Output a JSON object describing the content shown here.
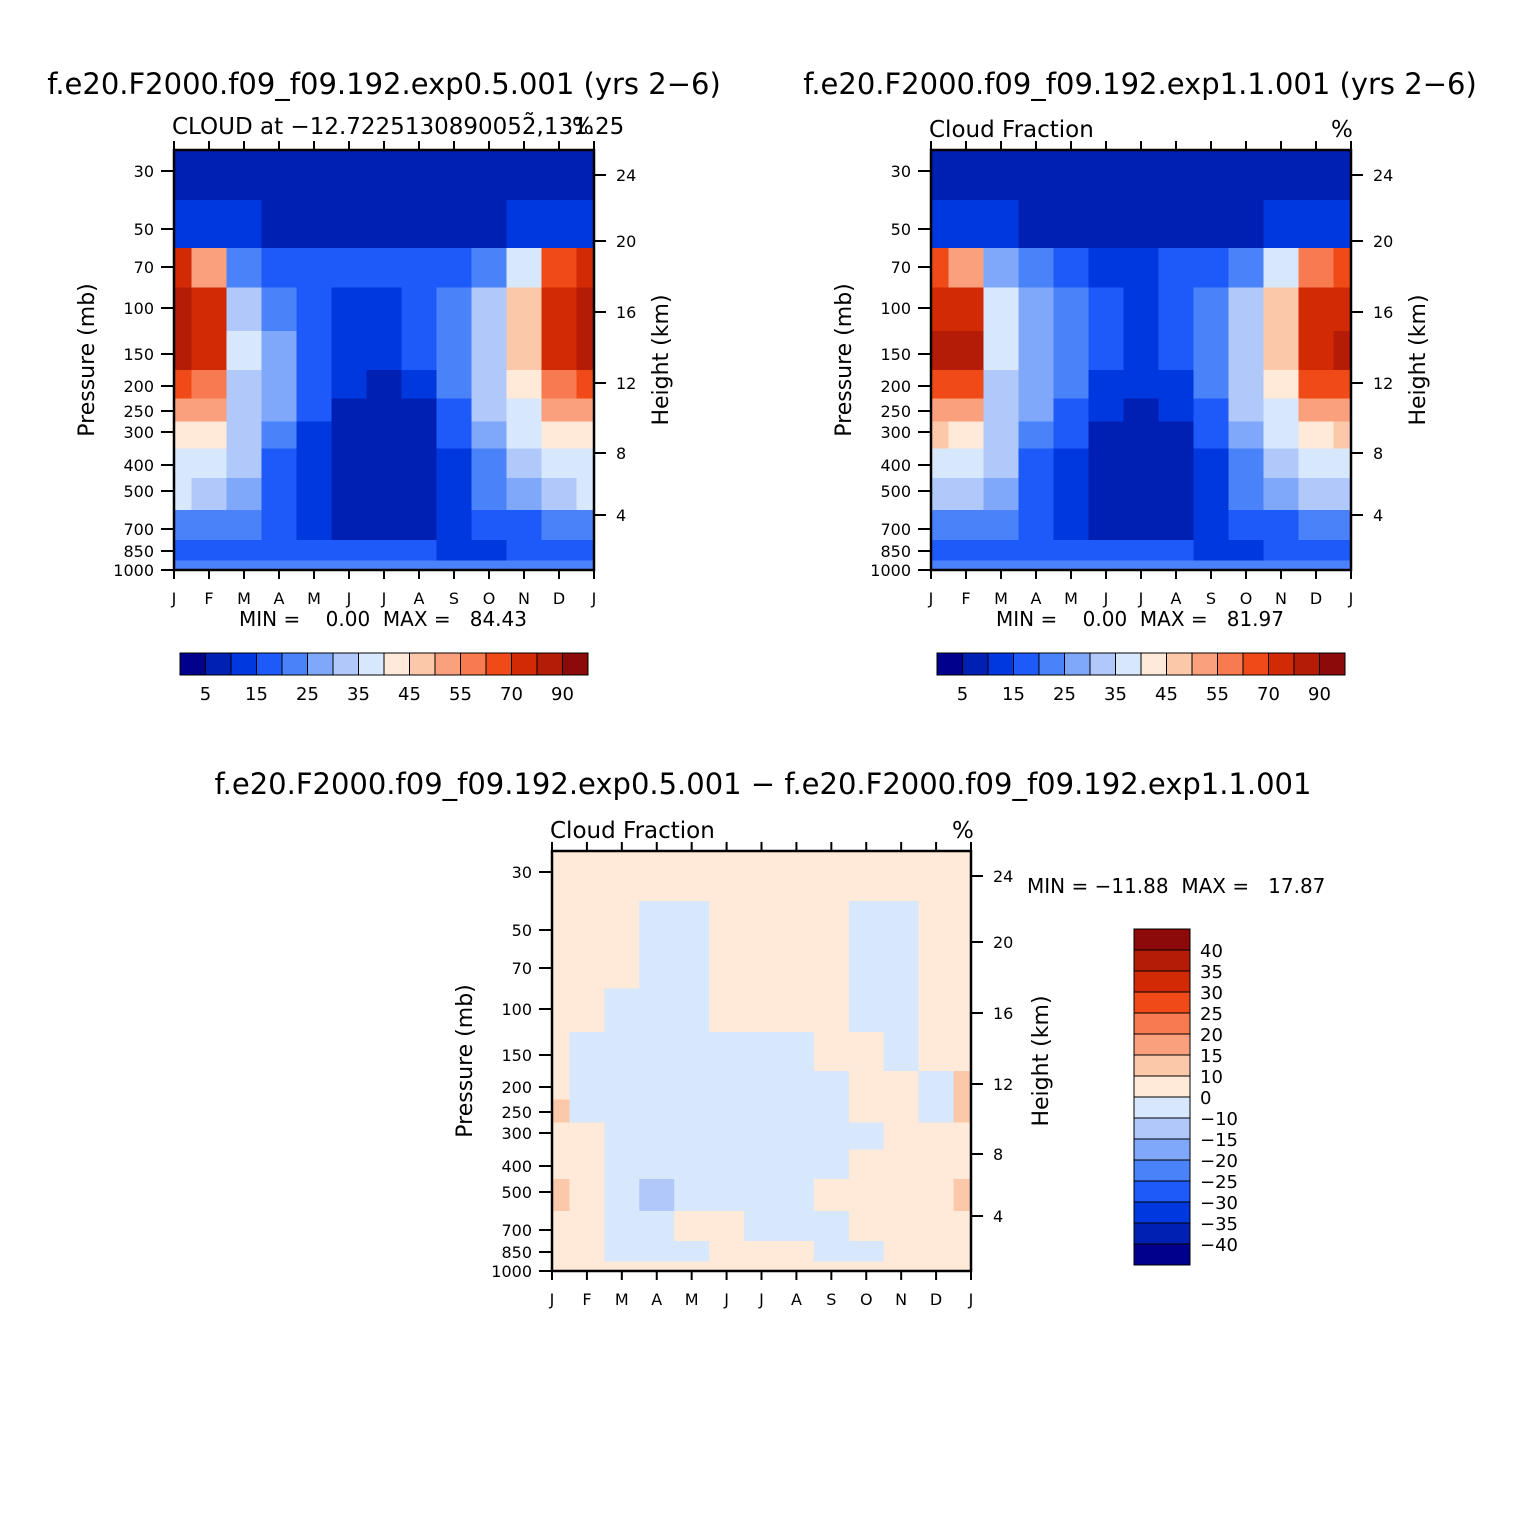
{
  "chart_data": [
    {
      "type": "heatmap",
      "title": "f.e20.F2000.f09_f09.192.exp0.5.001 (yrs 2−6)",
      "subtitle": "CLOUD at −12.7225130890052̃,131.25",
      "units": "%",
      "ylabel": "Pressure (mb)",
      "ylabel_right": "Height (km)",
      "x_ticks": [
        "J",
        "F",
        "M",
        "A",
        "M",
        "J",
        "J",
        "A",
        "S",
        "O",
        "N",
        "D",
        "J"
      ],
      "y_ticks": [
        "30",
        "50",
        "70",
        "100",
        "150",
        "200",
        "250",
        "300",
        "400",
        "500",
        "700",
        "850",
        "1000"
      ],
      "height_ticks": [
        "24",
        "20",
        "16",
        "12",
        "8",
        "4"
      ],
      "min_max": "MIN =    0.00  MAX =   84.43",
      "colorbar_labels": [
        "5",
        "15",
        "25",
        "35",
        "45",
        "55",
        "70",
        "90"
      ],
      "colorbar_colors": [
        "#00008C",
        "#0020B4",
        "#0038E0",
        "#1E5AFA",
        "#4A82FA",
        "#7FA8FA",
        "#B0C8FA",
        "#D8E8FC",
        "#FFE9D8",
        "#FCC8AA",
        "#FAA07C",
        "#F87A50",
        "#F04A18",
        "#D22A04",
        "#B41C08",
        "#8C0A0A"
      ],
      "ylim": [
        1000,
        30
      ],
      "z": [
        [
          1,
          1,
          1,
          1,
          1,
          1,
          1,
          1,
          1,
          1,
          1,
          1,
          1
        ],
        [
          2,
          2,
          2,
          1,
          1,
          1,
          1,
          1,
          1,
          1,
          2,
          2,
          2
        ],
        [
          13,
          10,
          4,
          3,
          3,
          3,
          3,
          3,
          3,
          4,
          7,
          12,
          13
        ],
        [
          14,
          13,
          6,
          4,
          3,
          2,
          2,
          3,
          4,
          6,
          9,
          13,
          14
        ],
        [
          14,
          13,
          7,
          5,
          3,
          2,
          2,
          3,
          4,
          6,
          9,
          13,
          14
        ],
        [
          12,
          11,
          6,
          5,
          3,
          2,
          1,
          2,
          4,
          6,
          8,
          11,
          12
        ],
        [
          10,
          10,
          6,
          5,
          3,
          1,
          1,
          1,
          3,
          6,
          7,
          10,
          10
        ],
        [
          8,
          8,
          6,
          4,
          2,
          1,
          1,
          1,
          3,
          5,
          7,
          8,
          8
        ],
        [
          7,
          7,
          6,
          3,
          2,
          1,
          1,
          1,
          2,
          4,
          6,
          7,
          7
        ],
        [
          7,
          6,
          5,
          3,
          2,
          1,
          1,
          1,
          2,
          4,
          5,
          6,
          7
        ],
        [
          4,
          4,
          4,
          3,
          2,
          1,
          1,
          1,
          2,
          3,
          3,
          4,
          4
        ],
        [
          3,
          3,
          3,
          3,
          3,
          3,
          3,
          3,
          2,
          2,
          3,
          3,
          3
        ],
        [
          4,
          4,
          4,
          4,
          4,
          4,
          4,
          4,
          4,
          4,
          4,
          4,
          4
        ]
      ]
    },
    {
      "type": "heatmap",
      "title": "f.e20.F2000.f09_f09.192.exp1.1.001 (yrs 2−6)",
      "subtitle": "Cloud Fraction",
      "units": "%",
      "ylabel": "Pressure (mb)",
      "ylabel_right": "Height (km)",
      "x_ticks": [
        "J",
        "F",
        "M",
        "A",
        "M",
        "J",
        "J",
        "A",
        "S",
        "O",
        "N",
        "D",
        "J"
      ],
      "y_ticks": [
        "30",
        "50",
        "70",
        "100",
        "150",
        "200",
        "250",
        "300",
        "400",
        "500",
        "700",
        "850",
        "1000"
      ],
      "height_ticks": [
        "24",
        "20",
        "16",
        "12",
        "8",
        "4"
      ],
      "min_max": "MIN =    0.00  MAX =   81.97",
      "colorbar_labels": [
        "5",
        "15",
        "25",
        "35",
        "45",
        "55",
        "70",
        "90"
      ],
      "colorbar_colors": [
        "#00008C",
        "#0020B4",
        "#0038E0",
        "#1E5AFA",
        "#4A82FA",
        "#7FA8FA",
        "#B0C8FA",
        "#D8E8FC",
        "#FFE9D8",
        "#FCC8AA",
        "#FAA07C",
        "#F87A50",
        "#F04A18",
        "#D22A04",
        "#B41C08",
        "#8C0A0A"
      ],
      "ylim": [
        1000,
        30
      ],
      "z": [
        [
          1,
          1,
          1,
          1,
          1,
          1,
          1,
          1,
          1,
          1,
          1,
          1,
          1
        ],
        [
          2,
          2,
          2,
          1,
          1,
          1,
          1,
          1,
          1,
          1,
          2,
          2,
          2
        ],
        [
          12,
          10,
          5,
          4,
          3,
          2,
          2,
          3,
          3,
          4,
          7,
          11,
          12
        ],
        [
          13,
          13,
          7,
          5,
          4,
          3,
          2,
          3,
          4,
          6,
          9,
          13,
          13
        ],
        [
          14,
          14,
          7,
          5,
          4,
          3,
          2,
          3,
          4,
          6,
          9,
          13,
          14
        ],
        [
          12,
          12,
          6,
          5,
          4,
          2,
          2,
          2,
          4,
          6,
          8,
          12,
          12
        ],
        [
          10,
          10,
          6,
          5,
          3,
          2,
          1,
          2,
          3,
          6,
          7,
          10,
          10
        ],
        [
          9,
          8,
          6,
          4,
          3,
          1,
          1,
          1,
          3,
          5,
          7,
          8,
          9
        ],
        [
          7,
          7,
          6,
          3,
          2,
          1,
          1,
          1,
          2,
          4,
          6,
          7,
          7
        ],
        [
          6,
          6,
          5,
          3,
          2,
          1,
          1,
          1,
          2,
          4,
          5,
          6,
          6
        ],
        [
          4,
          4,
          4,
          3,
          2,
          1,
          1,
          1,
          2,
          3,
          3,
          4,
          4
        ],
        [
          3,
          3,
          3,
          3,
          3,
          3,
          3,
          3,
          2,
          2,
          3,
          3,
          3
        ],
        [
          4,
          4,
          4,
          4,
          4,
          4,
          4,
          4,
          4,
          4,
          4,
          4,
          4
        ]
      ]
    },
    {
      "type": "heatmap",
      "title": "f.e20.F2000.f09_f09.192.exp0.5.001 − f.e20.F2000.f09_f09.192.exp1.1.001",
      "subtitle": "Cloud Fraction",
      "units": "%",
      "ylabel": "Pressure (mb)",
      "ylabel_right": "Height (km)",
      "x_ticks": [
        "J",
        "F",
        "M",
        "A",
        "M",
        "J",
        "J",
        "A",
        "S",
        "O",
        "N",
        "D",
        "J"
      ],
      "y_ticks": [
        "30",
        "50",
        "70",
        "100",
        "150",
        "200",
        "250",
        "300",
        "400",
        "500",
        "700",
        "850",
        "1000"
      ],
      "height_ticks": [
        "24",
        "20",
        "16",
        "12",
        "8",
        "4"
      ],
      "min_max": "MIN = −11.88  MAX =   17.87",
      "colorbar_labels": [
        "40",
        "35",
        "30",
        "25",
        "20",
        "15",
        "10",
        "0",
        "−10",
        "−15",
        "−20",
        "−25",
        "−30",
        "−35",
        "−40"
      ],
      "colorbar_colors": [
        "#8C0A0A",
        "#B41C08",
        "#D22A04",
        "#F04A18",
        "#F87A50",
        "#FAA07C",
        "#FCC8AA",
        "#FFE9D8",
        "#D8E8FC",
        "#B0C8FA",
        "#7FA8FA",
        "#4A82FA",
        "#1E5AFA",
        "#0038E0",
        "#0020B4",
        "#00008C"
      ],
      "ylim": [
        1000,
        30
      ],
      "z": [
        [
          7,
          7,
          7,
          7,
          7,
          7,
          7,
          7,
          7,
          7,
          7,
          7,
          7
        ],
        [
          7,
          7,
          7,
          8,
          8,
          7,
          7,
          7,
          7,
          8,
          8,
          7,
          7
        ],
        [
          7,
          7,
          7,
          8,
          8,
          7,
          7,
          7,
          7,
          8,
          8,
          7,
          7
        ],
        [
          7,
          7,
          8,
          8,
          8,
          7,
          7,
          7,
          7,
          8,
          8,
          7,
          7
        ],
        [
          7,
          8,
          8,
          8,
          8,
          8,
          8,
          8,
          7,
          7,
          8,
          7,
          7
        ],
        [
          7,
          8,
          8,
          8,
          8,
          8,
          8,
          8,
          8,
          7,
          7,
          8,
          6
        ],
        [
          6,
          8,
          8,
          8,
          8,
          8,
          8,
          8,
          8,
          7,
          7,
          8,
          6
        ],
        [
          7,
          7,
          8,
          8,
          8,
          8,
          8,
          8,
          8,
          8,
          7,
          7,
          7
        ],
        [
          7,
          7,
          8,
          8,
          8,
          8,
          8,
          8,
          8,
          7,
          7,
          7,
          7
        ],
        [
          6,
          7,
          8,
          9,
          8,
          8,
          8,
          8,
          7,
          7,
          7,
          7,
          6
        ],
        [
          7,
          7,
          8,
          8,
          7,
          7,
          8,
          8,
          8,
          7,
          7,
          7,
          7
        ],
        [
          7,
          7,
          8,
          8,
          8,
          7,
          7,
          7,
          8,
          8,
          7,
          7,
          7
        ],
        [
          7,
          7,
          7,
          7,
          7,
          7,
          7,
          7,
          7,
          7,
          7,
          7,
          7
        ]
      ]
    }
  ]
}
